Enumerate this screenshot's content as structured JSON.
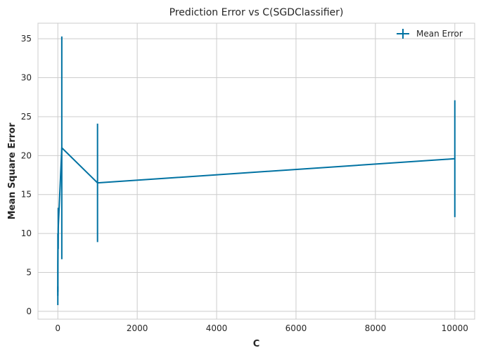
{
  "chart_data": {
    "type": "line",
    "title": "Prediction Error vs C(SGDClassifier)",
    "xlabel": "C",
    "ylabel": "Mean Square Error",
    "xlim": [
      -500,
      10500
    ],
    "ylim": [
      -1,
      37
    ],
    "x_ticks": [
      0,
      2000,
      4000,
      6000,
      8000,
      10000
    ],
    "y_ticks": [
      0,
      5,
      10,
      15,
      20,
      25,
      30,
      35
    ],
    "grid": true,
    "legend_position": "top-right",
    "series": [
      {
        "name": "Mean Error",
        "color": "#0072a2",
        "x": [
          0.1,
          1,
          10,
          100,
          1000,
          10000
        ],
        "y": [
          2.0,
          6.0,
          10.6,
          21.0,
          16.5,
          19.6
        ],
        "error_low": [
          0.8,
          2.5,
          8.0,
          6.7,
          8.9,
          12.1
        ],
        "error_high": [
          3.2,
          10.0,
          13.3,
          35.3,
          24.1,
          27.1
        ]
      }
    ]
  }
}
